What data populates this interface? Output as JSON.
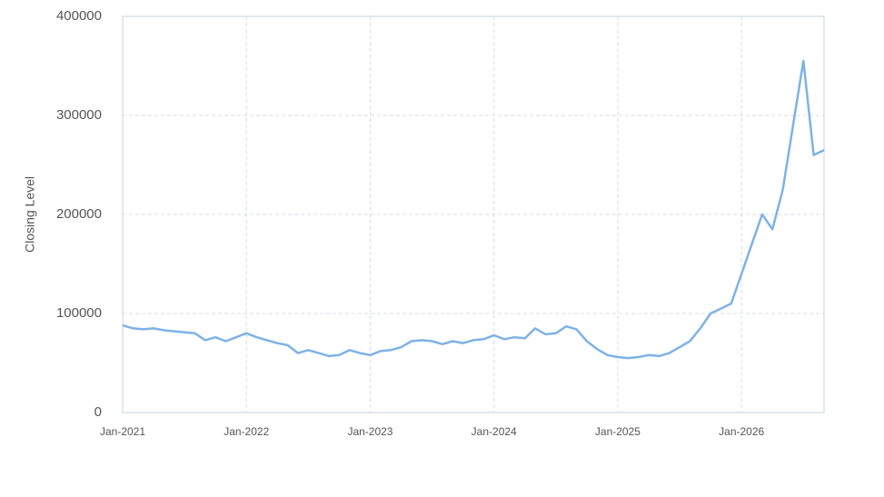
{
  "chart_data": {
    "type": "line",
    "y_label": "Closing Level",
    "color": "#7eb2e6",
    "grid": true,
    "x": [
      "2021-01",
      "2021-02",
      "2021-03",
      "2021-04",
      "2021-05",
      "2021-06",
      "2021-07",
      "2021-08",
      "2021-09",
      "2021-10",
      "2021-11",
      "2021-12",
      "2022-01",
      "2022-02",
      "2022-03",
      "2022-04",
      "2022-05",
      "2022-06",
      "2022-07",
      "2022-08",
      "2022-09",
      "2022-10",
      "2022-11",
      "2022-12",
      "2023-01",
      "2023-02",
      "2023-03",
      "2023-04",
      "2023-05",
      "2023-06",
      "2023-07",
      "2023-08",
      "2023-09",
      "2023-10",
      "2023-11",
      "2023-12",
      "2024-01",
      "2024-02",
      "2024-03",
      "2024-04",
      "2024-05",
      "2024-06",
      "2024-07",
      "2024-08",
      "2024-09",
      "2024-10",
      "2024-11",
      "2024-12",
      "2025-01",
      "2025-02",
      "2025-03",
      "2025-04",
      "2025-05",
      "2025-06",
      "2025-07",
      "2025-08",
      "2025-09",
      "2025-10",
      "2025-11",
      "2025-12",
      "2026-01",
      "2026-02",
      "2026-03",
      "2026-04",
      "2026-05",
      "2026-06",
      "2026-07",
      "2026-08",
      "2026-09"
    ],
    "values": [
      88000,
      85000,
      84000,
      85000,
      83000,
      82000,
      81000,
      80000,
      73000,
      76000,
      72000,
      76000,
      80000,
      76000,
      73000,
      70000,
      68000,
      60000,
      63000,
      60000,
      57000,
      58000,
      63000,
      60000,
      58000,
      62000,
      63000,
      66000,
      72000,
      73000,
      72000,
      69000,
      72000,
      70000,
      73000,
      74000,
      78000,
      74000,
      76000,
      75000,
      85000,
      79000,
      80000,
      87000,
      84000,
      72000,
      64000,
      58000,
      56000,
      55000,
      56000,
      58000,
      57000,
      60000,
      66000,
      72000,
      85000,
      100000,
      105000,
      110000,
      140000,
      170000,
      200000,
      185000,
      225000,
      290000,
      355000,
      260000,
      265000
    ],
    "xlim": [
      "2021-01",
      "2026-09"
    ],
    "xticks": [
      {
        "value": "2021-01",
        "label": "Jan-2021"
      },
      {
        "value": "2022-01",
        "label": "Jan-2022"
      },
      {
        "value": "2023-01",
        "label": "Jan-2023"
      },
      {
        "value": "2024-01",
        "label": "Jan-2024"
      },
      {
        "value": "2025-01",
        "label": "Jan-2025"
      },
      {
        "value": "2026-01",
        "label": "Jan-2026"
      }
    ],
    "ylim": [
      0,
      400000
    ],
    "yticks": [
      0,
      100000,
      200000,
      300000,
      400000
    ]
  }
}
